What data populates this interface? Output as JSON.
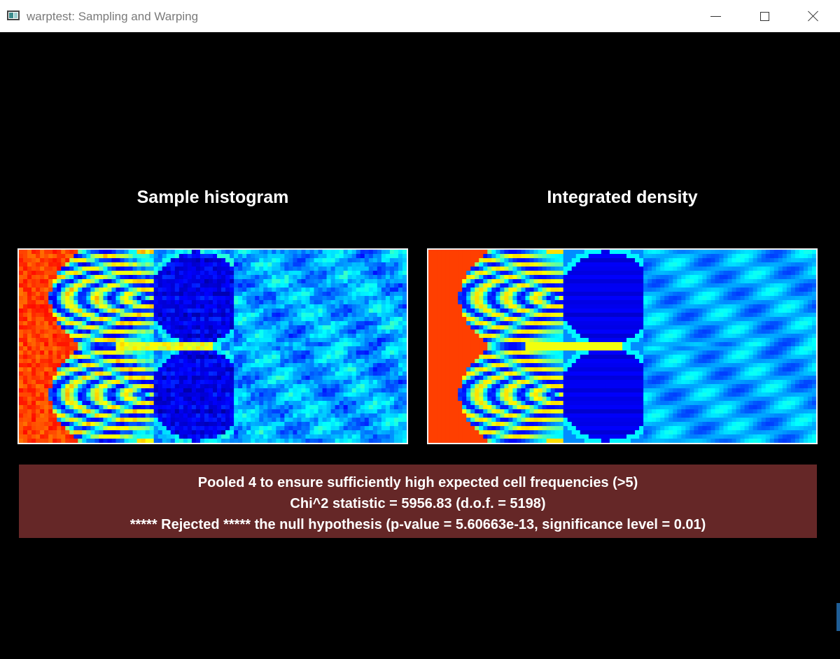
{
  "window": {
    "title": "warptest: Sampling and Warping",
    "controls": [
      "minimize-icon",
      "maximize-icon",
      "close-icon"
    ]
  },
  "panels": {
    "left_title": "Sample histogram",
    "right_title": "Integrated density"
  },
  "stats": {
    "line1": "Pooled 4 to ensure sufficiently high expected cell frequencies (>5)",
    "line2": "Chi^2 statistic = 5956.83 (d.o.f. = 5198)",
    "line3": "***** Rejected ***** the null hypothesis (p-value = 5.60663e-13, significance level = 0.01)"
  },
  "colors": {
    "background": "#000000",
    "stats_bg": "#652727",
    "colormap": [
      "#00008f",
      "#0000ff",
      "#0080ff",
      "#00ffff",
      "#80ff80",
      "#ffff00",
      "#ff8000",
      "#ff0000"
    ]
  }
}
